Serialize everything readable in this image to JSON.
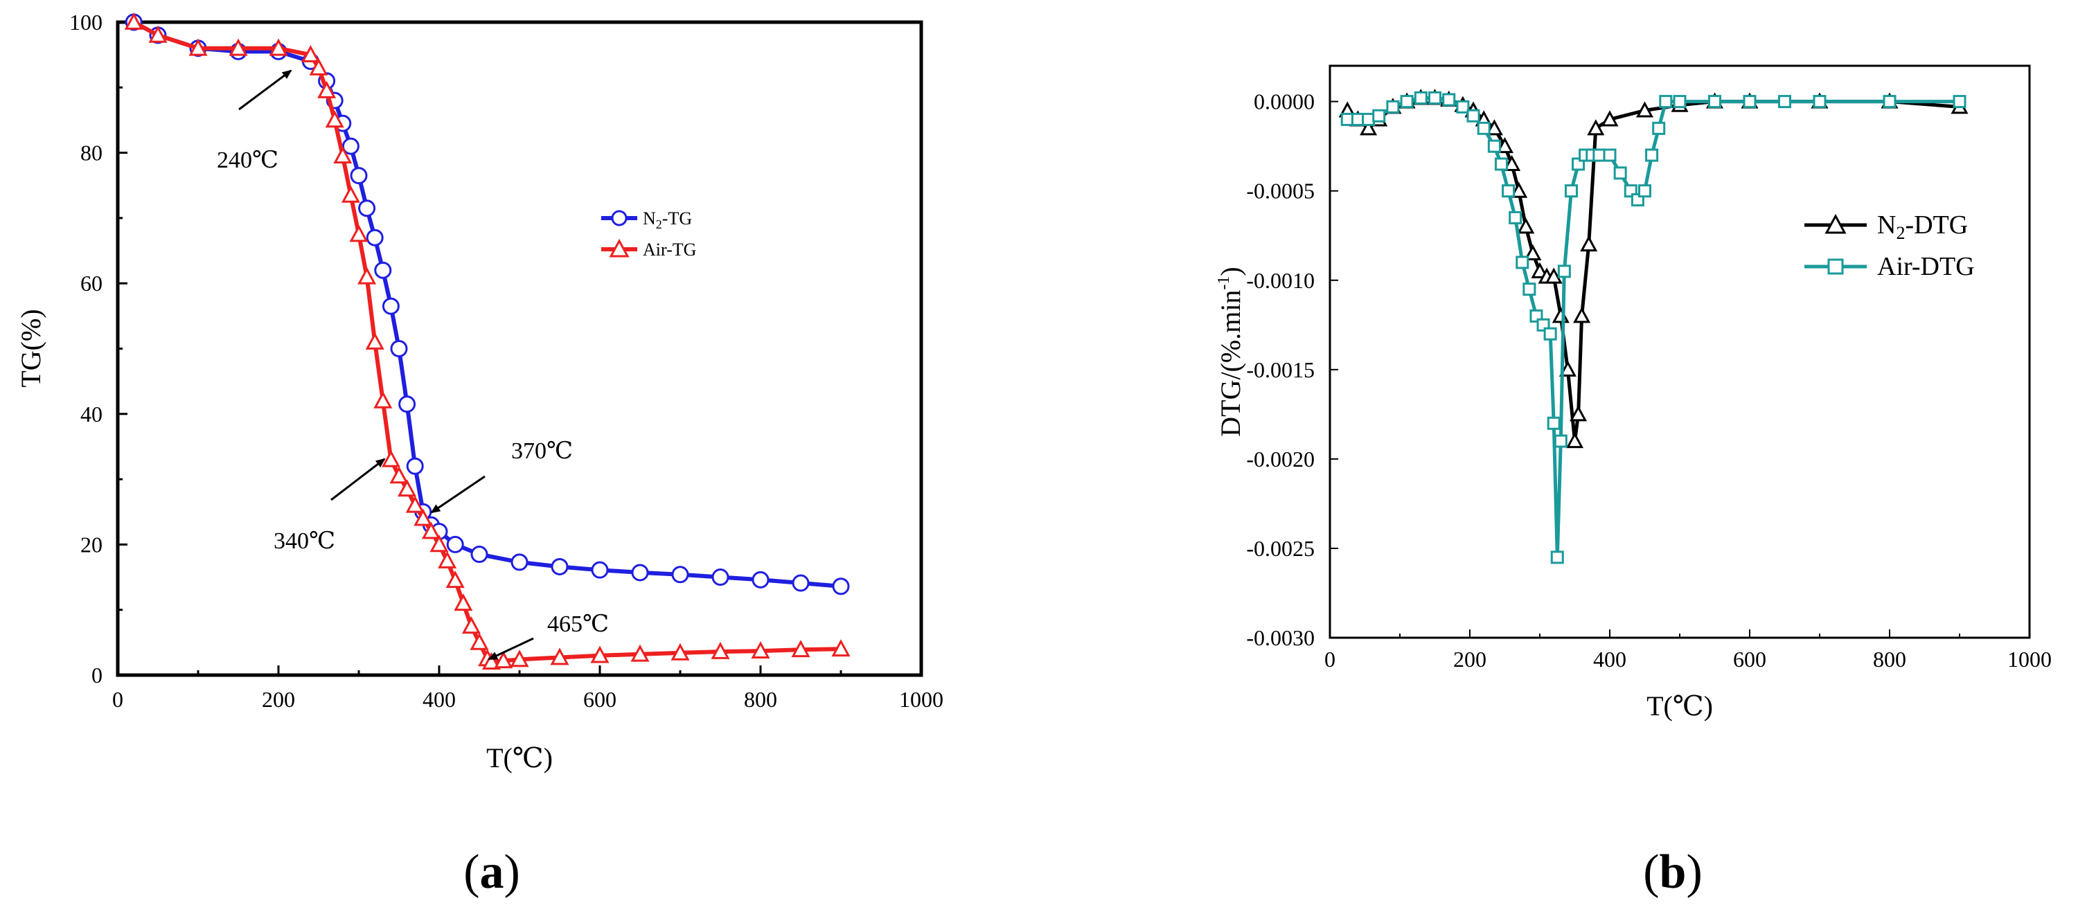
{
  "panels": [
    {
      "label_open": "(",
      "label_letter": "a",
      "label_close": ")"
    },
    {
      "label_open": "(",
      "label_letter": "b",
      "label_close": ")"
    }
  ],
  "chart_data": [
    {
      "type": "line",
      "xlabel": "T(℃)",
      "ylabel": "TG(%)",
      "xlim": [
        0,
        1000
      ],
      "ylim": [
        0,
        100
      ],
      "xticks": [
        "0",
        "200",
        "400",
        "600",
        "800",
        "1000"
      ],
      "yticks": [
        "0",
        "20",
        "40",
        "60",
        "80",
        "100"
      ],
      "legend_position": "right-middle",
      "series": [
        {
          "name_main": "N",
          "name_sub": "2",
          "name_rest": "-TG",
          "color": "#1f1fe0",
          "marker": "circle",
          "x": [
            20,
            50,
            100,
            150,
            200,
            240,
            260,
            270,
            280,
            290,
            300,
            310,
            320,
            330,
            340,
            350,
            360,
            370,
            380,
            390,
            400,
            420,
            450,
            500,
            550,
            600,
            650,
            700,
            750,
            800,
            850,
            900
          ],
          "y": [
            100,
            98,
            96,
            95.5,
            95.5,
            94,
            91,
            88,
            84.5,
            81,
            76.5,
            71.5,
            67,
            62,
            56.5,
            50,
            41.5,
            32,
            25,
            23,
            22,
            20,
            18.5,
            17.3,
            16.6,
            16.1,
            15.7,
            15.4,
            15,
            14.6,
            14.1,
            13.6
          ]
        },
        {
          "name": "Air-TG",
          "color": "#ee2020",
          "marker": "triangle",
          "x": [
            20,
            50,
            100,
            150,
            200,
            240,
            250,
            260,
            270,
            280,
            290,
            300,
            310,
            320,
            330,
            340,
            350,
            360,
            370,
            380,
            390,
            400,
            410,
            420,
            430,
            440,
            450,
            460,
            465,
            480,
            500,
            550,
            600,
            650,
            700,
            750,
            800,
            850,
            900
          ],
          "y": [
            100,
            98,
            96,
            96,
            96,
            95,
            93,
            89.5,
            85,
            79.5,
            73.5,
            67.5,
            61,
            51,
            42,
            33,
            30.5,
            28.5,
            26,
            24,
            22,
            20,
            17.5,
            14.5,
            11,
            7.5,
            5,
            2.5,
            2,
            2.2,
            2.4,
            2.7,
            3,
            3.2,
            3.4,
            3.6,
            3.7,
            3.9,
            4
          ]
        }
      ],
      "annotations": [
        {
          "text": "240℃",
          "x": 240,
          "y": 94
        },
        {
          "text": "340℃",
          "x": 340,
          "y": 33
        },
        {
          "text": "370℃",
          "x": 370,
          "y": 25
        },
        {
          "text": "465℃",
          "x": 465,
          "y": 2
        }
      ]
    },
    {
      "type": "line",
      "xlabel": "T(℃)",
      "ylabel_main": "DTG/(%.min",
      "ylabel_sup": "-1",
      "ylabel_close": ")",
      "xlim": [
        0,
        1000
      ],
      "ylim": [
        -0.003,
        0.0002
      ],
      "xticks": [
        "0",
        "200",
        "400",
        "600",
        "800",
        "1000"
      ],
      "yticks": [
        "0.0000",
        "-0.0005",
        "-0.0010",
        "-0.0015",
        "-0.0020",
        "-0.0025",
        "-0.0030"
      ],
      "legend_position": "right-middle",
      "series": [
        {
          "name_main": "N",
          "name_sub": "2",
          "name_rest": "-DTG",
          "color": "#000000",
          "marker": "triangle",
          "x": [
            25,
            40,
            55,
            70,
            90,
            110,
            130,
            150,
            170,
            190,
            205,
            220,
            235,
            250,
            260,
            270,
            280,
            290,
            300,
            310,
            320,
            330,
            340,
            350,
            355,
            360,
            370,
            380,
            400,
            450,
            500,
            550,
            600,
            700,
            800,
            900
          ],
          "y": [
            -5e-05,
            -0.0001,
            -0.00015,
            -0.0001,
            -3e-05,
            0,
            2e-05,
            2e-05,
            1e-05,
            -2e-05,
            -5e-05,
            -0.0001,
            -0.00015,
            -0.00025,
            -0.00035,
            -0.0005,
            -0.0007,
            -0.00085,
            -0.00095,
            -0.00098,
            -0.00098,
            -0.0012,
            -0.0015,
            -0.0019,
            -0.00175,
            -0.0012,
            -0.0008,
            -0.00015,
            -0.0001,
            -5e-05,
            -2e-05,
            0,
            0,
            0,
            0,
            -3e-05
          ]
        },
        {
          "name": "Air-DTG",
          "color": "#1a9a9a",
          "marker": "square",
          "x": [
            25,
            40,
            55,
            70,
            90,
            110,
            130,
            150,
            170,
            190,
            205,
            220,
            235,
            245,
            255,
            265,
            275,
            285,
            295,
            305,
            315,
            320,
            325,
            330,
            335,
            345,
            355,
            365,
            375,
            385,
            400,
            415,
            430,
            440,
            450,
            460,
            470,
            480,
            500,
            550,
            600,
            650,
            700,
            800,
            900
          ],
          "y": [
            -0.0001,
            -0.0001,
            -0.0001,
            -8e-05,
            -3e-05,
            0,
            2e-05,
            2e-05,
            1e-05,
            -3e-05,
            -8e-05,
            -0.00015,
            -0.00025,
            -0.00035,
            -0.0005,
            -0.00065,
            -0.0009,
            -0.00105,
            -0.0012,
            -0.00125,
            -0.0013,
            -0.0018,
            -0.00255,
            -0.0019,
            -0.00095,
            -0.0005,
            -0.00035,
            -0.0003,
            -0.0003,
            -0.0003,
            -0.0003,
            -0.0004,
            -0.0005,
            -0.00055,
            -0.0005,
            -0.0003,
            -0.00015,
            0,
            0,
            0,
            0,
            0,
            0,
            0,
            0
          ]
        }
      ]
    }
  ]
}
